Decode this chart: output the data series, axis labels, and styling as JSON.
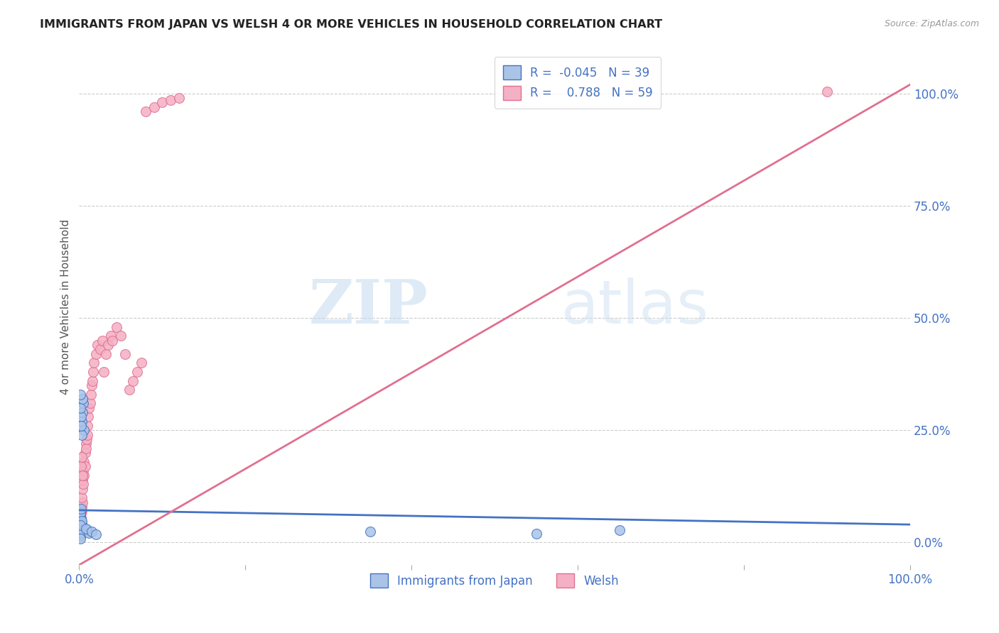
{
  "title": "IMMIGRANTS FROM JAPAN VS WELSH 4 OR MORE VEHICLES IN HOUSEHOLD CORRELATION CHART",
  "source": "Source: ZipAtlas.com",
  "ylabel": "4 or more Vehicles in Household",
  "legend_label1": "Immigrants from Japan",
  "legend_label2": "Welsh",
  "legend_R1": "R = -0.045",
  "legend_N1": "N = 39",
  "legend_R2": "R =  0.788",
  "legend_N2": "N = 59",
  "color_japan": "#aac4e8",
  "color_welsh": "#f4b0c4",
  "color_japan_line": "#4472c4",
  "color_welsh_line": "#e07090",
  "color_title": "#222222",
  "color_right_axis": "#4472c4",
  "background_color": "#ffffff",
  "watermark1": "ZIP",
  "watermark2": "atlas",
  "ytick_labels": [
    "0.0%",
    "25.0%",
    "50.0%",
    "75.0%",
    "100.0%"
  ],
  "ytick_values": [
    0.0,
    0.25,
    0.5,
    0.75,
    1.0
  ],
  "japan_x": [
    0.001,
    0.002,
    0.001,
    0.001,
    0.003,
    0.002,
    0.001,
    0.001,
    0.002,
    0.001,
    0.003,
    0.004,
    0.002,
    0.003,
    0.002,
    0.001,
    0.001,
    0.002,
    0.003,
    0.001,
    0.004,
    0.005,
    0.003,
    0.002,
    0.001,
    0.006,
    0.004,
    0.003,
    0.002,
    0.001,
    0.01,
    0.012,
    0.008,
    0.015,
    0.02,
    0.35,
    0.55,
    0.65,
    0.001
  ],
  "japan_y": [
    0.05,
    0.035,
    0.02,
    0.06,
    0.025,
    0.045,
    0.03,
    0.015,
    0.055,
    0.04,
    0.035,
    0.028,
    0.032,
    0.042,
    0.022,
    0.07,
    0.065,
    0.075,
    0.048,
    0.038,
    0.29,
    0.31,
    0.27,
    0.28,
    0.3,
    0.25,
    0.32,
    0.24,
    0.26,
    0.33,
    0.028,
    0.022,
    0.03,
    0.025,
    0.018,
    0.025,
    0.02,
    0.028,
    0.008
  ],
  "welsh_x": [
    0.001,
    0.001,
    0.002,
    0.001,
    0.001,
    0.002,
    0.001,
    0.002,
    0.003,
    0.002,
    0.003,
    0.004,
    0.003,
    0.004,
    0.004,
    0.005,
    0.005,
    0.006,
    0.006,
    0.007,
    0.007,
    0.008,
    0.008,
    0.009,
    0.01,
    0.01,
    0.011,
    0.012,
    0.013,
    0.014,
    0.015,
    0.016,
    0.017,
    0.018,
    0.02,
    0.022,
    0.025,
    0.028,
    0.03,
    0.032,
    0.035,
    0.038,
    0.04,
    0.045,
    0.05,
    0.055,
    0.06,
    0.065,
    0.07,
    0.075,
    0.08,
    0.09,
    0.1,
    0.11,
    0.12,
    0.002,
    0.003,
    0.004,
    0.9
  ],
  "welsh_y": [
    0.05,
    0.02,
    0.03,
    0.06,
    0.04,
    0.055,
    0.035,
    0.045,
    0.07,
    0.065,
    0.08,
    0.09,
    0.1,
    0.12,
    0.14,
    0.13,
    0.16,
    0.15,
    0.18,
    0.17,
    0.2,
    0.22,
    0.21,
    0.23,
    0.24,
    0.26,
    0.28,
    0.3,
    0.31,
    0.33,
    0.35,
    0.36,
    0.38,
    0.4,
    0.42,
    0.44,
    0.43,
    0.45,
    0.38,
    0.42,
    0.44,
    0.46,
    0.45,
    0.48,
    0.46,
    0.42,
    0.34,
    0.36,
    0.38,
    0.4,
    0.96,
    0.97,
    0.98,
    0.985,
    0.99,
    0.17,
    0.19,
    0.15,
    1.005
  ],
  "japan_R": -0.045,
  "welsh_R": 0.788,
  "japan_N": 39,
  "welsh_N": 59,
  "xlim": [
    0.0,
    1.0
  ],
  "ylim": [
    -0.05,
    1.1
  ]
}
